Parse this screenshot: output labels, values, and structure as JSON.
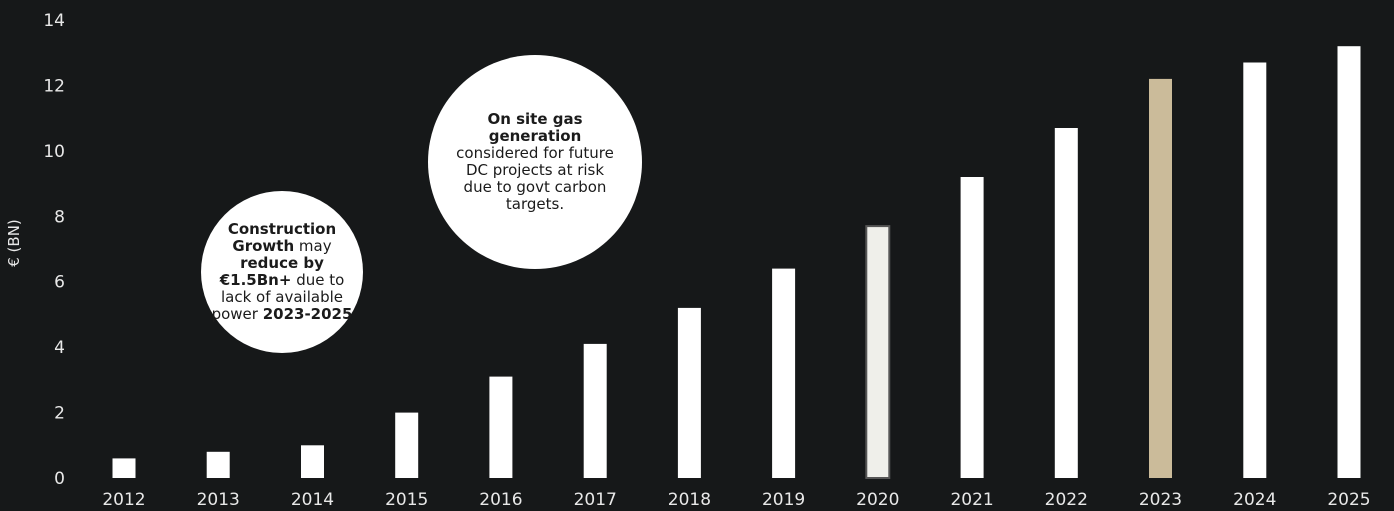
{
  "chart_data": {
    "type": "bar",
    "categories": [
      "2012",
      "2013",
      "2014",
      "2015",
      "2016",
      "2017",
      "2018",
      "2019",
      "2020",
      "2021",
      "2022",
      "2023",
      "2024",
      "2025"
    ],
    "values": [
      0.6,
      0.8,
      1.0,
      2.0,
      3.1,
      4.1,
      5.2,
      6.4,
      7.7,
      9.2,
      10.7,
      12.2,
      12.7,
      13.2
    ],
    "bar_colors": [
      "#ffffff",
      "#ffffff",
      "#ffffff",
      "#ffffff",
      "#ffffff",
      "#ffffff",
      "#ffffff",
      "#ffffff",
      "#efefea",
      "#ffffff",
      "#ffffff",
      "#cbbb9a",
      "#ffffff",
      "#ffffff"
    ],
    "highlight_outline": {
      "category": "2020",
      "color": "#555555"
    },
    "ylabel": "€ (BN)",
    "xlabel": "",
    "ylim": [
      0,
      14
    ],
    "yticks": [
      "0",
      "2",
      "4",
      "6",
      "8",
      "10",
      "12",
      "14"
    ],
    "grid": false,
    "background": "#161819"
  },
  "annotations": {
    "construction": {
      "bold1": "Construction Growth",
      "text1": " may ",
      "bold2": "reduce by €1.5Bn+",
      "text2": " due to lack of available power ",
      "bold3": "2023-2025"
    },
    "gas": {
      "bold1": "On site gas generation",
      "text1": " considered for future DC projects at risk due to govt carbon targets."
    }
  }
}
